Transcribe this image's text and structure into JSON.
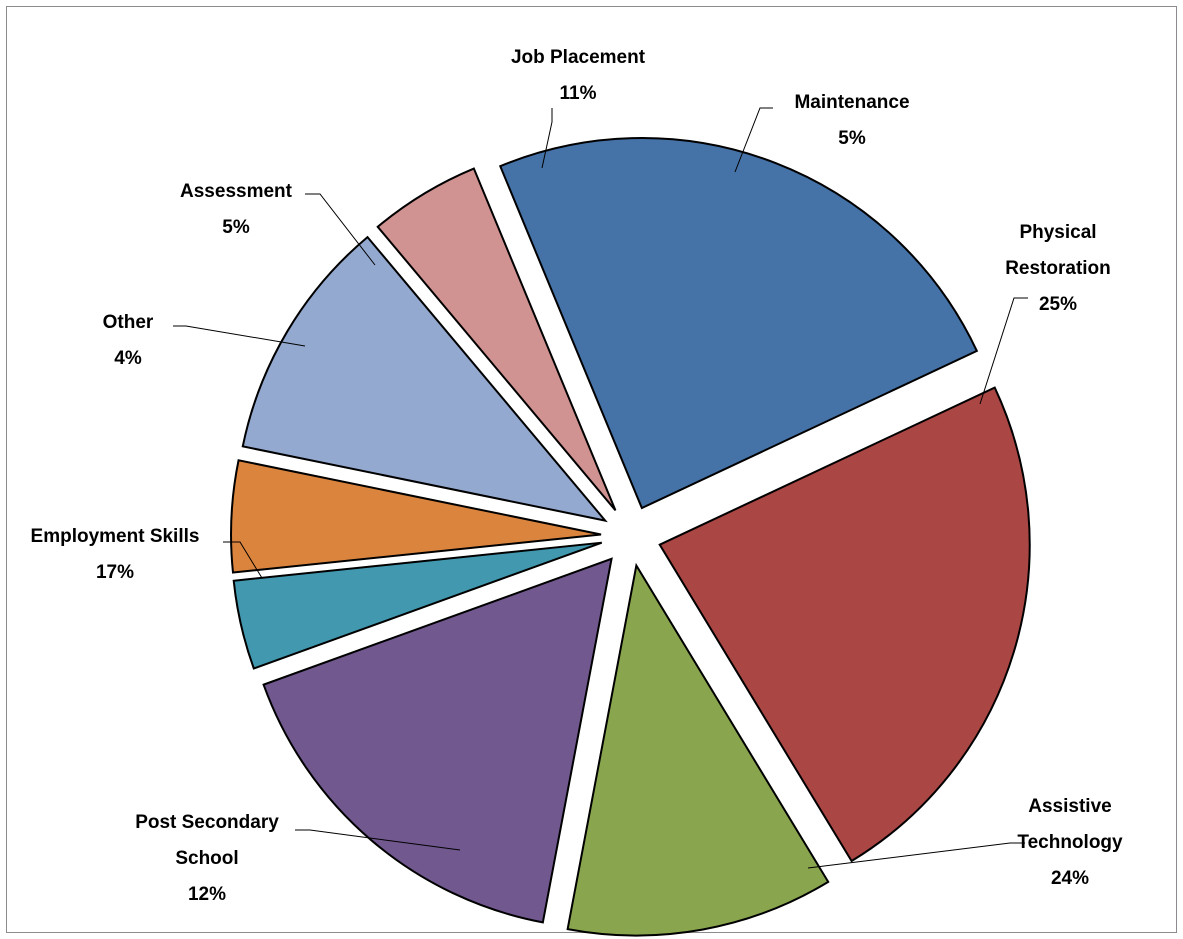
{
  "chart_data": {
    "type": "pie",
    "title": "",
    "exploded": true,
    "slices": [
      {
        "name": "Physical Restoration",
        "label_lines": [
          "Physical",
          "Restoration"
        ],
        "value": 25,
        "value_label": "25%",
        "color": "#4572A7"
      },
      {
        "name": "Assistive Technology",
        "label_lines": [
          "Assistive",
          "Technology"
        ],
        "value": 24,
        "value_label": "24%",
        "color": "#AA4643"
      },
      {
        "name": "Post Secondary School",
        "label_lines": [
          "Post Secondary",
          "School"
        ],
        "value": 12,
        "value_label": "12%",
        "color": "#89A54E"
      },
      {
        "name": "Employment Skills",
        "label_lines": [
          "Employment Skills"
        ],
        "value": 17,
        "value_label": "17%",
        "color": "#71588F"
      },
      {
        "name": "Other",
        "label_lines": [
          "Other"
        ],
        "value": 4,
        "value_label": "4%",
        "color": "#4198AF"
      },
      {
        "name": "Assessment",
        "label_lines": [
          "Assessment"
        ],
        "value": 5,
        "value_label": "5%",
        "color": "#DB843D"
      },
      {
        "name": "Job Placement",
        "label_lines": [
          "Job Placement"
        ],
        "value": 11,
        "value_label": "11%",
        "color": "#93A9CF"
      },
      {
        "name": "Maintenance",
        "label_lines": [
          "Maintenance"
        ],
        "value": 5,
        "value_label": "5%",
        "color": "#D19392"
      }
    ]
  }
}
